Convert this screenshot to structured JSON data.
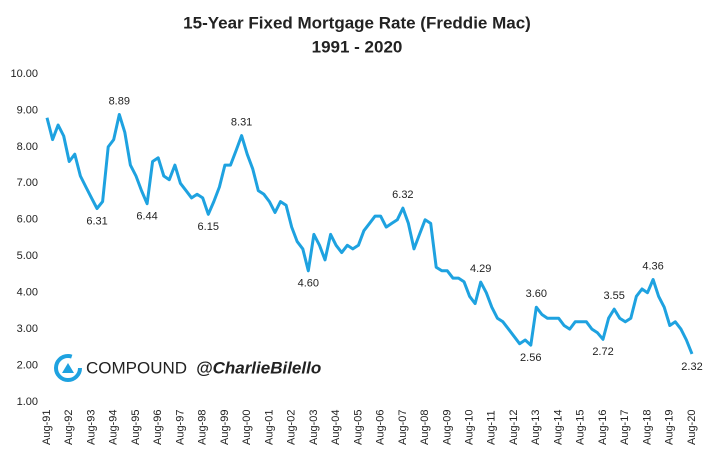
{
  "chart_data": {
    "type": "line",
    "title": "15-Year Fixed Mortgage Rate (Freddie Mac)",
    "subtitle": "1991 - 2020",
    "watermark": {
      "brand": "COMPOUND",
      "handle": "@CharlieBilello"
    },
    "categories": [
      "Aug-91",
      null,
      null,
      null,
      "Aug-92",
      null,
      null,
      null,
      "Aug-93",
      null,
      null,
      null,
      "Aug-94",
      null,
      null,
      null,
      "Aug-95",
      null,
      null,
      null,
      "Aug-96",
      null,
      null,
      null,
      "Aug-97",
      null,
      null,
      null,
      "Aug-98",
      null,
      null,
      null,
      "Aug-99",
      null,
      null,
      null,
      "Aug-00",
      null,
      null,
      null,
      "Aug-01",
      null,
      null,
      null,
      "Aug-02",
      null,
      null,
      null,
      "Aug-03",
      null,
      null,
      null,
      "Aug-04",
      null,
      null,
      null,
      "Aug-05",
      null,
      null,
      null,
      "Aug-06",
      null,
      null,
      null,
      "Aug-07",
      null,
      null,
      null,
      "Aug-08",
      null,
      null,
      null,
      "Aug-09",
      null,
      null,
      null,
      "Aug-10",
      null,
      null,
      null,
      "Aug-11",
      null,
      null,
      null,
      "Aug-12",
      null,
      null,
      null,
      "Aug-13",
      null,
      null,
      null,
      "Aug-14",
      null,
      null,
      null,
      "Aug-15",
      null,
      null,
      null,
      "Aug-16",
      null,
      null,
      null,
      "Aug-17",
      null,
      null,
      null,
      "Aug-18",
      null,
      null,
      null,
      "Aug-19",
      null,
      null,
      null,
      "Aug-20"
    ],
    "series": [
      {
        "name": "15-Year Fixed Mortgage Rate",
        "color": "#1ea2e0",
        "values": [
          8.8,
          8.2,
          8.6,
          8.3,
          7.6,
          7.8,
          7.2,
          6.9,
          6.6,
          6.31,
          6.5,
          8.0,
          8.2,
          8.89,
          8.4,
          7.5,
          7.2,
          6.8,
          6.44,
          7.6,
          7.7,
          7.2,
          7.1,
          7.5,
          7.0,
          6.8,
          6.6,
          6.7,
          6.6,
          6.15,
          6.5,
          6.9,
          7.5,
          7.5,
          7.9,
          8.31,
          7.8,
          7.4,
          6.8,
          6.7,
          6.5,
          6.2,
          6.5,
          6.4,
          5.8,
          5.4,
          5.2,
          4.6,
          5.6,
          5.3,
          4.9,
          5.6,
          5.3,
          5.1,
          5.3,
          5.2,
          5.3,
          5.7,
          5.9,
          6.1,
          6.1,
          5.8,
          5.9,
          6.0,
          6.32,
          5.9,
          5.2,
          5.6,
          6.0,
          5.9,
          4.7,
          4.6,
          4.6,
          4.4,
          4.4,
          4.3,
          3.9,
          3.7,
          4.29,
          4.0,
          3.6,
          3.3,
          3.2,
          3.0,
          2.8,
          2.6,
          2.7,
          2.56,
          3.6,
          3.4,
          3.3,
          3.3,
          3.3,
          3.1,
          3.0,
          3.2,
          3.2,
          3.2,
          3.0,
          2.9,
          2.72,
          3.3,
          3.55,
          3.3,
          3.2,
          3.3,
          3.9,
          4.1,
          4.0,
          4.36,
          3.9,
          3.6,
          3.1,
          3.2,
          3.0,
          2.7,
          2.32
        ],
        "value_labels": [
          null,
          null,
          null,
          null,
          null,
          null,
          null,
          null,
          null,
          "6.31",
          null,
          null,
          null,
          "8.89",
          null,
          null,
          null,
          null,
          "6.44",
          null,
          null,
          null,
          null,
          null,
          null,
          null,
          null,
          null,
          null,
          "6.15",
          null,
          null,
          null,
          null,
          null,
          "8.31",
          null,
          null,
          null,
          null,
          null,
          null,
          null,
          null,
          null,
          null,
          null,
          "4.60",
          null,
          null,
          null,
          null,
          null,
          null,
          null,
          null,
          null,
          null,
          null,
          null,
          null,
          null,
          null,
          null,
          "6.32",
          null,
          null,
          null,
          null,
          null,
          null,
          null,
          null,
          null,
          null,
          null,
          null,
          null,
          "4.29",
          null,
          null,
          null,
          null,
          null,
          null,
          null,
          null,
          "2.56",
          "3.60",
          null,
          null,
          null,
          null,
          null,
          null,
          null,
          null,
          null,
          null,
          null,
          "2.72",
          null,
          "3.55",
          null,
          null,
          null,
          null,
          null,
          null,
          "4.36",
          null,
          null,
          null,
          null,
          null,
          null,
          "2.32"
        ]
      }
    ],
    "ylim": [
      1,
      10
    ],
    "yticks": [
      {
        "value": 1,
        "label": "1.00"
      },
      {
        "value": 2,
        "label": "2.00"
      },
      {
        "value": 3,
        "label": "3.00"
      },
      {
        "value": 4,
        "label": "4.00"
      },
      {
        "value": 5,
        "label": "5.00"
      },
      {
        "value": 6,
        "label": "6.00"
      },
      {
        "value": 7,
        "label": "7.00"
      },
      {
        "value": 8,
        "label": "8.00"
      },
      {
        "value": 9,
        "label": "9.00"
      },
      {
        "value": 10,
        "label": "10.00"
      }
    ],
    "grid": false
  }
}
